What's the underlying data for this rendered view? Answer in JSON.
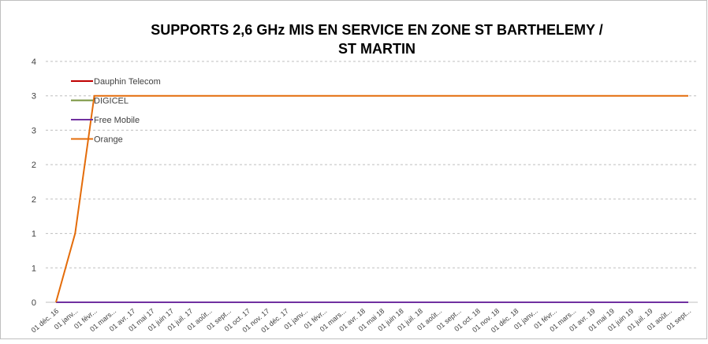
{
  "chart_data": {
    "type": "line",
    "title": [
      "SUPPORTS 2,6 GHz MIS EN SERVICE  EN ZONE ST BARTHELEMY /",
      "ST MARTIN"
    ],
    "categories": [
      "01 déc. 16",
      "01 janv...",
      "01 févr...",
      "01 mars...",
      "01 avr. 17",
      "01 mai 17",
      "01 juin 17",
      "01 juil. 17",
      "01 août...",
      "01 sept...",
      "01 oct. 17",
      "01 nov. 17",
      "01 déc. 17",
      "01 janv...",
      "01 févr...",
      "01 mars...",
      "01 avr. 18",
      "01 mai 18",
      "01 juin 18",
      "01 juil. 18",
      "01 août...",
      "01 sept...",
      "01 oct. 18",
      "01 nov. 18",
      "01 déc. 18",
      "01 janv...",
      "01 févr...",
      "01 mars...",
      "01 avr. 19",
      "01 mai 19",
      "01 juin 19",
      "01 juil. 19",
      "01 août...",
      "01 sept..."
    ],
    "series": [
      {
        "name": "Dauphin Telecom",
        "color": "#c00000",
        "values": [
          0,
          0,
          0,
          0,
          0,
          0,
          0,
          0,
          0,
          0,
          0,
          0,
          0,
          0,
          0,
          0,
          0,
          0,
          0,
          0,
          0,
          0,
          0,
          0,
          0,
          0,
          0,
          0,
          0,
          0,
          0,
          0,
          0,
          0
        ]
      },
      {
        "name": "DIGICEL",
        "color": "#77933c",
        "values": [
          0,
          0,
          0,
          0,
          0,
          0,
          0,
          0,
          0,
          0,
          0,
          0,
          0,
          0,
          0,
          0,
          0,
          0,
          0,
          0,
          0,
          0,
          0,
          0,
          0,
          0,
          0,
          0,
          0,
          0,
          0,
          0,
          0,
          0
        ]
      },
      {
        "name": "Free Mobile",
        "color": "#7030a0",
        "values": [
          0,
          0,
          0,
          0,
          0,
          0,
          0,
          0,
          0,
          0,
          0,
          0,
          0,
          0,
          0,
          0,
          0,
          0,
          0,
          0,
          0,
          0,
          0,
          0,
          0,
          0,
          0,
          0,
          0,
          0,
          0,
          0,
          0,
          0
        ]
      },
      {
        "name": "Orange",
        "color": "#e46c0a",
        "values": [
          0,
          1,
          3,
          3,
          3,
          3,
          3,
          3,
          3,
          3,
          3,
          3,
          3,
          3,
          3,
          3,
          3,
          3,
          3,
          3,
          3,
          3,
          3,
          3,
          3,
          3,
          3,
          3,
          3,
          3,
          3,
          3,
          3,
          3
        ]
      }
    ],
    "ylim": [
      0,
      3.5
    ],
    "yticks": [
      0,
      {
        "value": 0.5,
        "label": "1"
      },
      1,
      {
        "value": 1.5,
        "label": "2"
      },
      2,
      {
        "value": 2.5,
        "label": "3"
      },
      3,
      {
        "value": 3.5,
        "label": "4"
      }
    ],
    "grid": true,
    "legend": "top-left"
  }
}
